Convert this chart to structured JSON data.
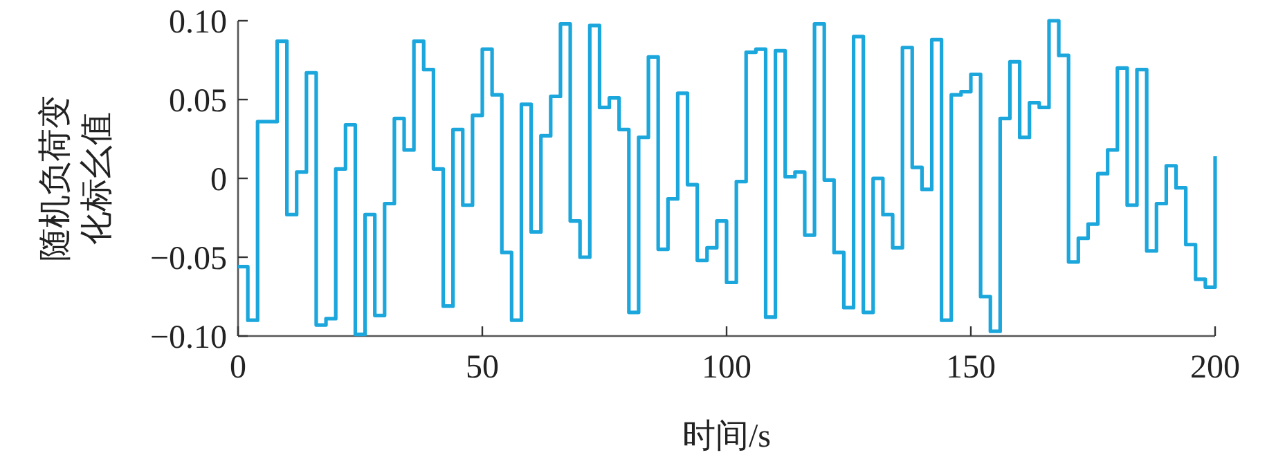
{
  "chart_data": {
    "type": "step",
    "xlabel": "时间/s",
    "ylabel": "随机负荷变化标幺值",
    "x": [
      0,
      2,
      4,
      6,
      8,
      10,
      12,
      14,
      16,
      18,
      20,
      22,
      24,
      26,
      28,
      30,
      32,
      34,
      36,
      38,
      40,
      42,
      44,
      46,
      48,
      50,
      52,
      54,
      56,
      58,
      60,
      62,
      64,
      66,
      68,
      70,
      72,
      74,
      76,
      78,
      80,
      82,
      84,
      86,
      88,
      90,
      92,
      94,
      96,
      98,
      100,
      102,
      104,
      106,
      108,
      110,
      112,
      114,
      116,
      118,
      120,
      122,
      124,
      126,
      128,
      130,
      132,
      134,
      136,
      138,
      140,
      142,
      144,
      146,
      148,
      150,
      152,
      154,
      156,
      158,
      160,
      162,
      164,
      166,
      168,
      170,
      172,
      174,
      176,
      178,
      180,
      182,
      184,
      186,
      188,
      190,
      192,
      194,
      196,
      198,
      200
    ],
    "series": [
      {
        "color": "#1ba6dc",
        "values": [
          -0.056,
          -0.09,
          0.036,
          0.036,
          0.087,
          -0.023,
          0.004,
          0.067,
          -0.093,
          -0.089,
          0.006,
          0.034,
          -0.099,
          -0.023,
          -0.087,
          -0.016,
          0.038,
          0.018,
          0.087,
          0.069,
          0.006,
          -0.081,
          0.031,
          -0.017,
          0.04,
          0.082,
          0.053,
          -0.047,
          -0.09,
          0.047,
          -0.034,
          0.027,
          0.052,
          0.098,
          -0.027,
          -0.05,
          0.097,
          0.045,
          0.051,
          0.031,
          -0.085,
          0.026,
          0.077,
          -0.045,
          -0.013,
          0.054,
          -0.004,
          -0.052,
          -0.044,
          -0.027,
          -0.066,
          -0.002,
          0.08,
          0.082,
          -0.088,
          0.081,
          0.001,
          0.004,
          -0.036,
          0.098,
          -0.001,
          -0.047,
          -0.082,
          0.09,
          -0.085,
          0.0,
          -0.023,
          -0.044,
          0.083,
          0.007,
          -0.007,
          0.088,
          -0.09,
          0.053,
          0.055,
          0.066,
          -0.075,
          -0.097,
          0.038,
          0.074,
          0.026,
          0.048,
          0.045,
          0.1,
          0.078,
          -0.053,
          -0.038,
          -0.029,
          0.003,
          0.018,
          0.07,
          -0.017,
          0.069,
          -0.046,
          -0.016,
          0.008,
          -0.006,
          -0.042,
          -0.064,
          -0.069,
          0.014
        ]
      }
    ],
    "xlim": [
      0,
      200
    ],
    "xticks": [
      0,
      50,
      100,
      150,
      200
    ],
    "ylim": [
      -0.1,
      0.1
    ],
    "yticks": [
      {
        "value": -0.1,
        "label": "−0.10"
      },
      {
        "value": -0.05,
        "label": "−0.05"
      },
      {
        "value": 0,
        "label": "0"
      },
      {
        "value": 0.05,
        "label": "0.05"
      },
      {
        "value": 0.1,
        "label": "0.10"
      }
    ],
    "grid": false,
    "line_style": "solid"
  }
}
